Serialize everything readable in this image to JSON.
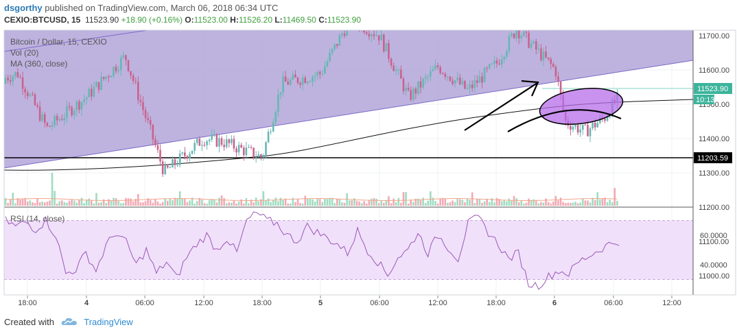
{
  "header": {
    "author": "dsgorthy",
    "published_text": "published on TradingView.com, March 06, 2018 06:34 UTC",
    "symbol": "CEXIO:BTCUSD, 15",
    "last": "11523.90",
    "change": "+18.90 (+0.16%)",
    "o_label": "O:",
    "o_value": "11523.00",
    "h_label": "H:",
    "h_value": "11526.20",
    "l_label": "L:",
    "l_value": "11469.50",
    "c_label": "C:",
    "c_value": "11523.90"
  },
  "legend": {
    "main": "Bitcoin / Dollar, 15, CEXIO",
    "vol": "Vol (20)",
    "ma": "MA (360, close)",
    "rsi": "RSI (14, close)"
  },
  "badges": {
    "price": "11523.90",
    "time": "10:13",
    "level": "11203.59"
  },
  "colors": {
    "channel_fill": "#b3a6d9",
    "channel_line": "#7b68c7",
    "candle_up": "#67b7b4",
    "candle_down": "#c9628d",
    "vol_up": "#9fdcc0",
    "vol_down": "#f3a9b4",
    "ellipse_fill": "#b56ee8",
    "rsi_line": "#9b57b5",
    "rsi_band": "#f0e0fa",
    "ma_line": "#111111",
    "badge_bg": "#3cb49b",
    "level_badge_bg": "#000000"
  },
  "footer": {
    "created_with": "Created with",
    "brand": "TradingView",
    "logo_icon": "tradingview-cloud-icon"
  },
  "chart_data": [
    {
      "type": "candlestick",
      "title": "Bitcoin / Dollar, 15, CEXIO",
      "y_ticks": [
        "11700.00",
        "11600.00",
        "11500.00",
        "11400.00",
        "11300.00",
        "11200.00",
        "11100.00",
        "11000.00"
      ],
      "x_ticks": [
        "18:00",
        "4",
        "06:00",
        "12:00",
        "18:00",
        "5",
        "06:00",
        "12:00",
        "18:00",
        "6",
        "06:00",
        "12:00"
      ],
      "ylim": [
        10970,
        11790
      ],
      "grid": true,
      "key_points": [
        {
          "time": "Mar 3 14:00",
          "price": 11560
        },
        {
          "time": "Mar 3 17:00",
          "price": 11590
        },
        {
          "time": "Mar 3 20:00",
          "price": 11430
        },
        {
          "time": "Mar 4 00:00",
          "price": 11520
        },
        {
          "time": "Mar 4 04:00",
          "price": 11640
        },
        {
          "time": "Mar 4 08:00",
          "price": 11300
        },
        {
          "time": "Mar 4 12:00",
          "price": 11400
        },
        {
          "time": "Mar 4 14:00",
          "price": 11390
        },
        {
          "time": "Mar 4 18:00",
          "price": 11345
        },
        {
          "time": "Mar 4 20:00",
          "price": 11560
        },
        {
          "time": "Mar 5 00:00",
          "price": 11590
        },
        {
          "time": "Mar 5 03:00",
          "price": 11750
        },
        {
          "time": "Mar 5 06:00",
          "price": 11700
        },
        {
          "time": "Mar 5 09:00",
          "price": 11520
        },
        {
          "time": "Mar 5 12:00",
          "price": 11610
        },
        {
          "time": "Mar 5 15:00",
          "price": 11540
        },
        {
          "time": "Mar 5 18:00",
          "price": 11620
        },
        {
          "time": "Mar 5 20:00",
          "price": 11720
        },
        {
          "time": "Mar 5 22:00",
          "price": 11660
        },
        {
          "time": "Mar 6 00:00",
          "price": 11600
        },
        {
          "time": "Mar 6 01:00",
          "price": 11450
        },
        {
          "time": "Mar 6 03:00",
          "price": 11420
        },
        {
          "time": "Mar 6 05:00",
          "price": 11460
        },
        {
          "time": "Mar 6 06:30",
          "price": 11524
        }
      ],
      "horizontal_level": 11203.59,
      "last_price": 11523.9
    },
    {
      "type": "line",
      "title": "RSI (14, close)",
      "y_ticks": [
        "60.0000",
        "40.0000"
      ],
      "band": [
        30,
        70
      ],
      "series": [
        {
          "values": [
            70,
            66,
            69,
            64,
            70,
            60,
            34,
            37,
            48,
            36,
            53,
            62,
            55,
            40,
            50,
            34,
            42,
            31,
            45,
            54,
            60,
            50,
            58,
            48,
            70,
            75,
            70,
            68,
            60,
            56,
            66,
            62,
            58,
            54,
            48,
            63,
            50,
            42,
            33,
            45,
            50,
            62,
            48,
            60,
            52,
            44,
            68,
            72,
            62,
            54,
            44,
            48,
            27,
            26,
            32,
            36,
            34,
            42,
            46,
            50,
            54,
            56
          ]
        }
      ]
    }
  ]
}
